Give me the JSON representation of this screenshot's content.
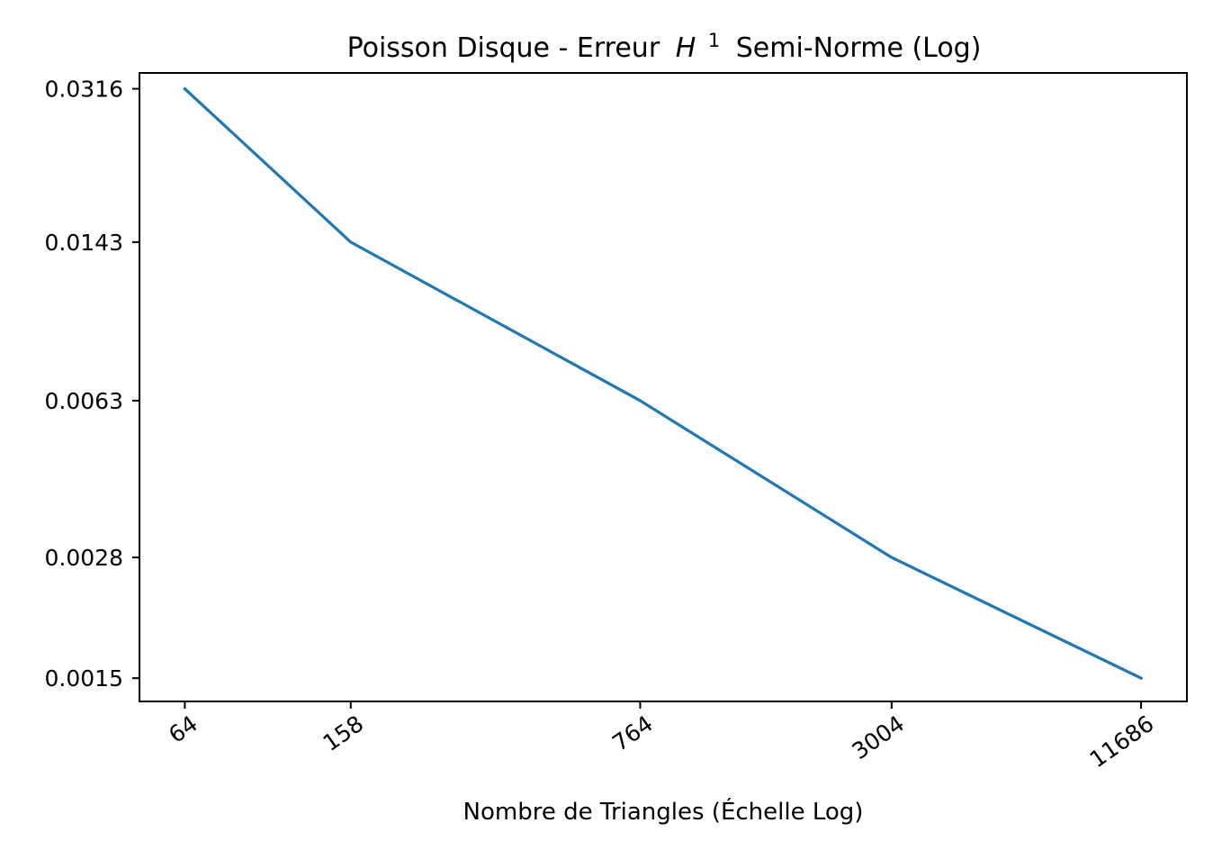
{
  "chart_data": {
    "type": "line",
    "title": {
      "main": "Poisson Disque - Erreur",
      "symbol": "H",
      "superscript": "1",
      "suffix": "Semi-Norme (Log)"
    },
    "xlabel": "Nombre de Triangles (Échelle Log)",
    "ylabel": "",
    "x_scale": "log",
    "y_scale": "log",
    "x": [
      64,
      158,
      764,
      3004,
      11686
    ],
    "x_tick_labels": [
      "64",
      "158",
      "764",
      "3004",
      "11686"
    ],
    "y_ticks": [
      0.0316,
      0.0143,
      0.0063,
      0.0028,
      0.0015
    ],
    "y_tick_labels": [
      "0.0316",
      "0.0143",
      "0.0063",
      "0.0028",
      "0.0015"
    ],
    "xlim": [
      50,
      15000
    ],
    "ylim": [
      0.00133,
      0.0343
    ],
    "grid": false,
    "legend": "none",
    "series": [
      {
        "values": [
          0.0316,
          0.0143,
          0.0063,
          0.0028,
          0.0015
        ],
        "color": "#1f77b4"
      }
    ]
  }
}
